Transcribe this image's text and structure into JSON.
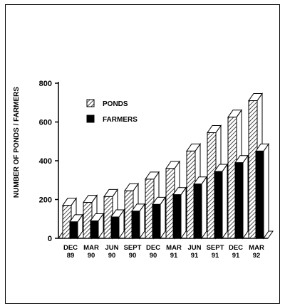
{
  "chart_data": {
    "type": "bar",
    "title": "",
    "xlabel": "",
    "ylabel": "NUMBER  OF  PONDS / FARMERS",
    "ylim": [
      0,
      800
    ],
    "yticks": [
      0,
      200,
      400,
      600,
      800
    ],
    "categories": [
      [
        "DEC",
        "89"
      ],
      [
        "MAR",
        "90"
      ],
      [
        "JUN",
        "90"
      ],
      [
        "SEPT",
        "90"
      ],
      [
        "DEC",
        "90"
      ],
      [
        "MAR",
        "91"
      ],
      [
        "JUN",
        "91"
      ],
      [
        "SEPT",
        "91"
      ],
      [
        "DEC",
        "91"
      ],
      [
        "MAR",
        "92"
      ]
    ],
    "series": [
      {
        "name": "PONDS",
        "pattern": "hatched",
        "values": [
          170,
          185,
          215,
          245,
          305,
          360,
          450,
          545,
          625,
          710
        ]
      },
      {
        "name": "FARMERS",
        "pattern": "solid",
        "values": [
          85,
          90,
          110,
          140,
          175,
          225,
          280,
          345,
          390,
          450
        ]
      }
    ],
    "legend_position": "top-left",
    "grid": false,
    "style": "3d-bars",
    "colors": {
      "ink": "#000000",
      "paper": "#ffffff"
    }
  }
}
